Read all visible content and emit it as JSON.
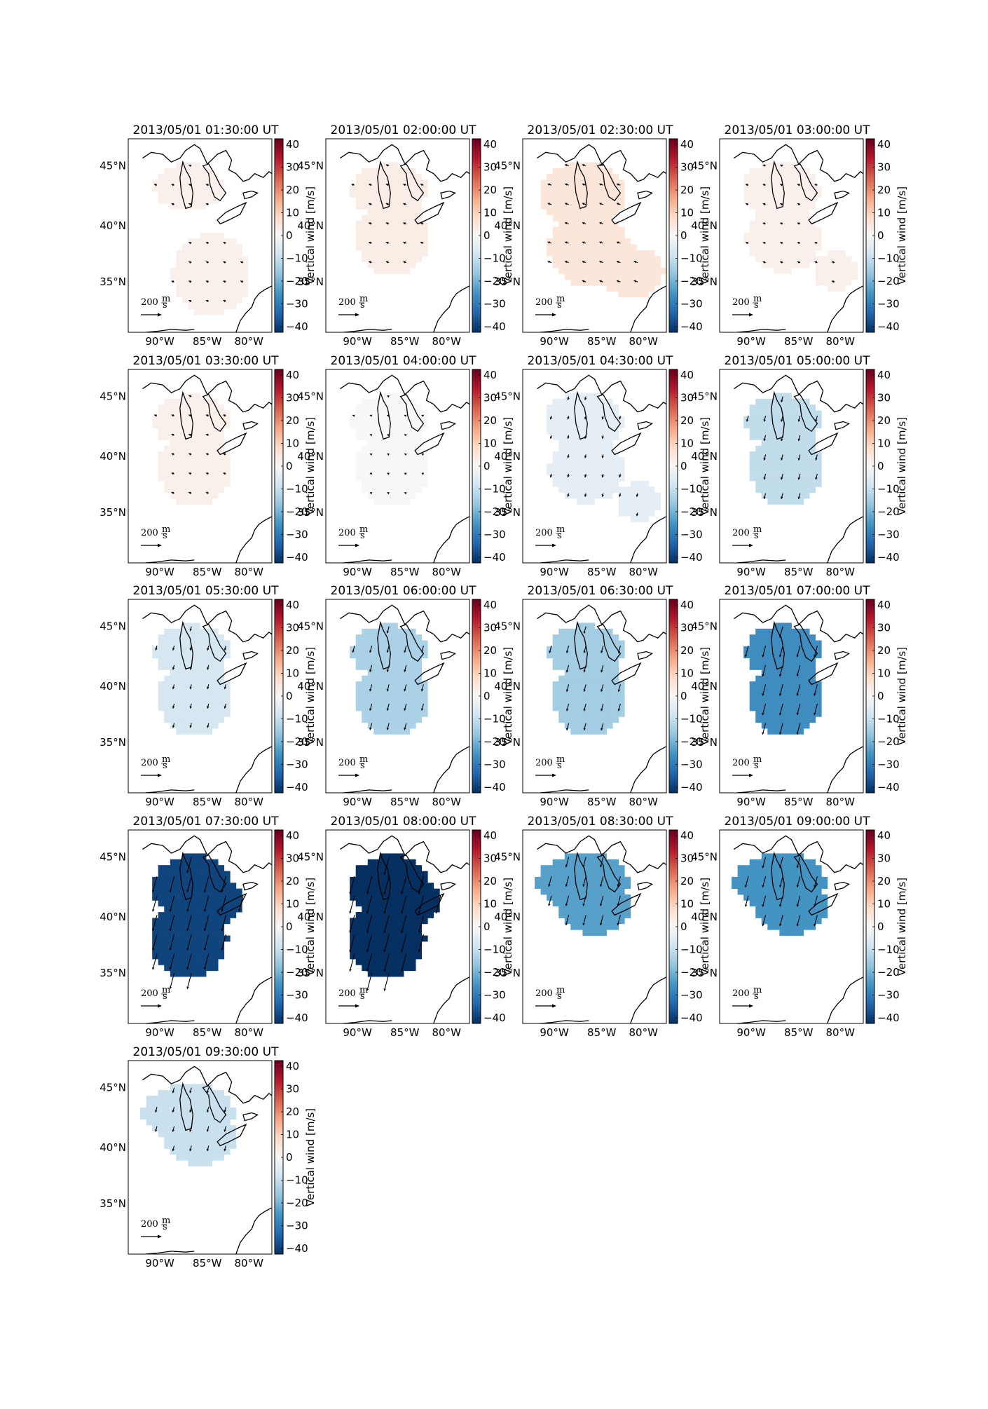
{
  "figure": {
    "colorbar_label": "Vertical wind [m/s]",
    "colorbar_ticks": [
      "40",
      "30",
      "20",
      "10",
      "0",
      "−10",
      "−20",
      "−30",
      "−40"
    ],
    "lat_ticks": [
      "45°N",
      "40°N",
      "35°N"
    ],
    "lon_ticks": [
      "90°W",
      "85°W",
      "80°W"
    ],
    "scale_value": "200",
    "scale_unit_num": "m",
    "scale_unit_den": "s"
  },
  "colors": {
    "colormap": "RdBu_r",
    "coastline": "#000000",
    "arrows": "#000000"
  },
  "chart_data": [
    {
      "type": "heatmap",
      "title": "2013/05/01 01:30:00 UT",
      "vertical_wind_ms": 2,
      "coverage": "northern and southern patches",
      "clim": [
        -40,
        40
      ]
    },
    {
      "type": "heatmap",
      "title": "2013/05/01 02:00:00 UT",
      "vertical_wind_ms": 3,
      "coverage": "connected region",
      "clim": [
        -40,
        40
      ]
    },
    {
      "type": "heatmap",
      "title": "2013/05/01 02:30:00 UT",
      "vertical_wind_ms": 5,
      "coverage": "large region plus southeast patch",
      "clim": [
        -40,
        40
      ]
    },
    {
      "type": "heatmap",
      "title": "2013/05/01 03:00:00 UT",
      "vertical_wind_ms": 2,
      "coverage": "region plus southeast patch",
      "clim": [
        -40,
        40
      ]
    },
    {
      "type": "heatmap",
      "title": "2013/05/01 03:30:00 UT",
      "vertical_wind_ms": 2,
      "coverage": "connected region",
      "clim": [
        -40,
        40
      ]
    },
    {
      "type": "heatmap",
      "title": "2013/05/01 04:00:00 UT",
      "vertical_wind_ms": 0,
      "coverage": "connected region",
      "clim": [
        -40,
        40
      ]
    },
    {
      "type": "heatmap",
      "title": "2013/05/01 04:30:00 UT",
      "vertical_wind_ms": -4,
      "coverage": "region plus southeast patch",
      "clim": [
        -40,
        40
      ]
    },
    {
      "type": "heatmap",
      "title": "2013/05/01 05:00:00 UT",
      "vertical_wind_ms": -10,
      "coverage": "connected region",
      "clim": [
        -40,
        40
      ]
    },
    {
      "type": "heatmap",
      "title": "2013/05/01 05:30:00 UT",
      "vertical_wind_ms": -7,
      "coverage": "connected region",
      "clim": [
        -40,
        40
      ]
    },
    {
      "type": "heatmap",
      "title": "2013/05/01 06:00:00 UT",
      "vertical_wind_ms": -13,
      "coverage": "connected region",
      "clim": [
        -40,
        40
      ]
    },
    {
      "type": "heatmap",
      "title": "2013/05/01 06:30:00 UT",
      "vertical_wind_ms": -14,
      "coverage": "connected region",
      "clim": [
        -40,
        40
      ]
    },
    {
      "type": "heatmap",
      "title": "2013/05/01 07:00:00 UT",
      "vertical_wind_ms": -25,
      "coverage": "connected region",
      "clim": [
        -40,
        40
      ]
    },
    {
      "type": "heatmap",
      "title": "2013/05/01 07:30:00 UT",
      "vertical_wind_ms": -37,
      "coverage": "large connected region",
      "clim": [
        -40,
        40
      ]
    },
    {
      "type": "heatmap",
      "title": "2013/05/01 08:00:00 UT",
      "vertical_wind_ms": -42,
      "coverage": "large connected region",
      "clim": [
        -40,
        40
      ]
    },
    {
      "type": "heatmap",
      "title": "2013/05/01 08:30:00 UT",
      "vertical_wind_ms": -22,
      "coverage": "northern region",
      "clim": [
        -40,
        40
      ]
    },
    {
      "type": "heatmap",
      "title": "2013/05/01 09:00:00 UT",
      "vertical_wind_ms": -24,
      "coverage": "northern region",
      "clim": [
        -40,
        40
      ]
    },
    {
      "type": "heatmap",
      "title": "2013/05/01 09:30:00 UT",
      "vertical_wind_ms": -9,
      "coverage": "northern region",
      "clim": [
        -40,
        40
      ]
    }
  ]
}
